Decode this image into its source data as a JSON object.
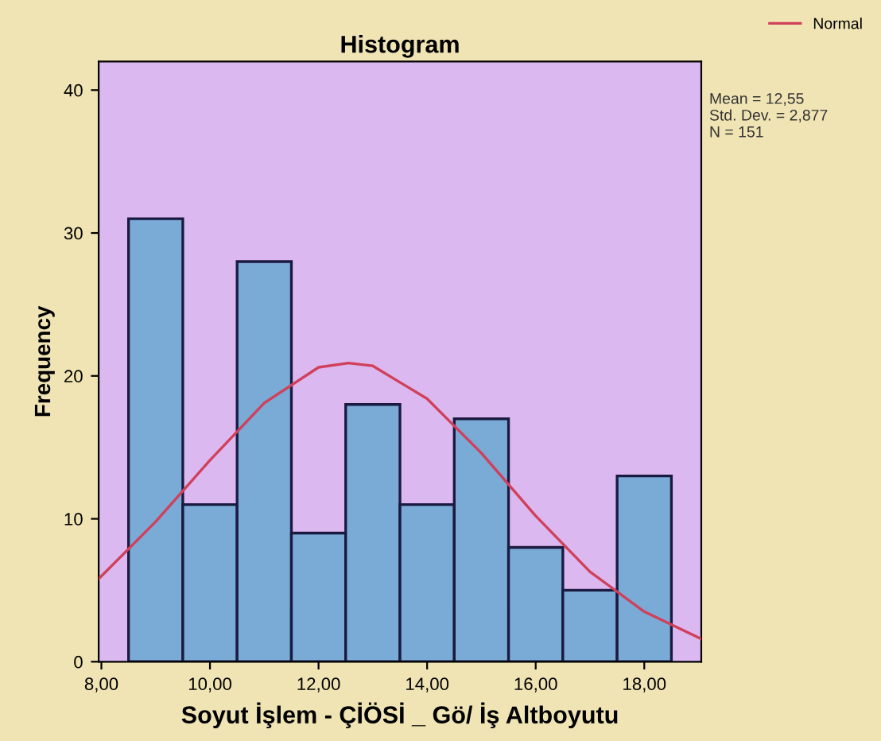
{
  "chart_data": {
    "type": "histogram",
    "title": "Histogram",
    "xlabel": "Soyut İşlem - ÇİÖSİ _ Gö/ İş Altboyutu",
    "ylabel": "Frequency",
    "bins": [
      8.5,
      9.5,
      10.5,
      11.5,
      12.5,
      13.5,
      14.5,
      15.5,
      16.5,
      17.5,
      18.5
    ],
    "values": [
      31,
      11,
      28,
      9,
      18,
      11,
      17,
      8,
      5,
      13
    ],
    "color": "#7aaad6",
    "series": [
      {
        "name": "Normal",
        "type": "line",
        "color": "#d0405a",
        "x": [
          7.95,
          9,
          10,
          11,
          12,
          12.55,
          13,
          14,
          15,
          16,
          17,
          18,
          19.05
        ],
        "values": [
          5.8,
          9.8,
          14.1,
          18.1,
          20.6,
          20.9,
          20.7,
          18.4,
          14.6,
          10.2,
          6.3,
          3.5,
          1.6
        ]
      }
    ],
    "xlim": [
      7.95,
      19.05
    ],
    "ylim": [
      0,
      42
    ],
    "xticks": [
      {
        "value": 8,
        "label": "8,00"
      },
      {
        "value": 10,
        "label": "10,00"
      },
      {
        "value": 12,
        "label": "12,00"
      },
      {
        "value": 14,
        "label": "14,00"
      },
      {
        "value": 16,
        "label": "16,00"
      },
      {
        "value": 18,
        "label": "18,00"
      }
    ],
    "yticks": [
      0,
      10,
      20,
      30,
      40
    ],
    "annotations": [
      "Mean = 12,55\nStd. Dev. = 2,877\nN = 151"
    ],
    "legend": "top right",
    "grid": false
  }
}
